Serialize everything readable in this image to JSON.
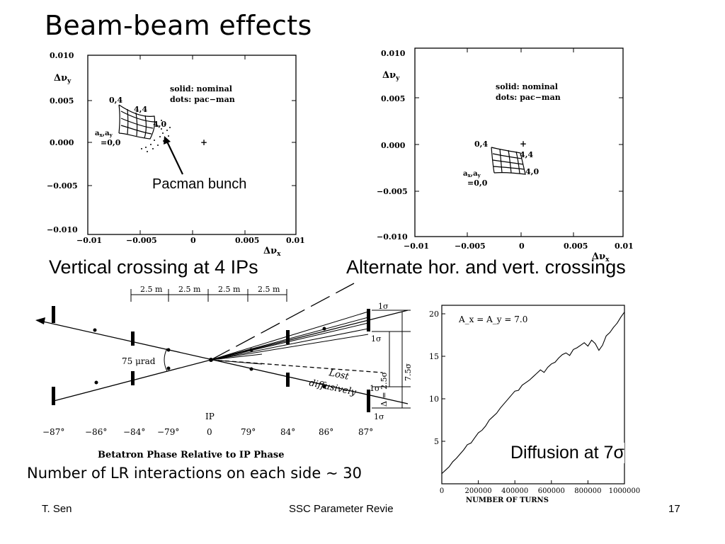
{
  "slide": {
    "title": "Beam-beam effects",
    "caption_left": "Vertical crossing at 4 IPs",
    "caption_right": "Alternate hor. and vert. crossings",
    "pacman_label": "Pacman bunch",
    "lr_text": "Number of LR interactions on each side ~ 30",
    "diffusion_label": "Diffusion at 7σ",
    "footer_left": "T. Sen",
    "footer_center": "SSC Parameter Revie",
    "page_number": "17"
  },
  "tune_plot_left": {
    "y_label": "Δν",
    "y_sub": "y",
    "x_label": "Δν",
    "x_sub": "x",
    "y_ticks": [
      "0.010",
      "0.005",
      "0.000",
      "−0.005",
      "−0.010"
    ],
    "x_ticks": [
      "−0.01",
      "−0.005",
      "0",
      "0.005",
      "0.01"
    ],
    "legend_solid": "solid: nominal",
    "legend_dots": "dots: pac−man",
    "pt_04": "0,4",
    "pt_44": "4,4",
    "pt_40": "4,0",
    "pt_axay": "a",
    "pt_axay_sub": "x",
    "pt_axay2": ",a",
    "pt_axay_sub2": "y",
    "pt_00": "=0,0"
  },
  "tune_plot_right": {
    "y_label": "Δν",
    "y_sub": "y",
    "x_label": "Δν",
    "x_sub": "x",
    "y_ticks": [
      "0.010",
      "0.005",
      "0.000",
      "−0.005",
      "−0.010"
    ],
    "x_ticks": [
      "−0.01",
      "−0.005",
      "0",
      "0.005",
      "0.01"
    ],
    "legend_solid": "solid: nominal",
    "legend_dots": "dots: pac−man",
    "pt_04": "0,4",
    "pt_44": "4,4",
    "pt_40": "4,0",
    "pt_axay": "a",
    "pt_axay_sub": "x",
    "pt_axay2": ",a",
    "pt_axay_sub2": "y",
    "pt_00": "=0,0"
  },
  "crossing_diagram": {
    "spacings": [
      "2.5 m",
      "2.5 m",
      "2.5 m",
      "2.5 m"
    ],
    "angle_label": "75 μrad",
    "lost_label_1": "Lost",
    "lost_label_2": "diffusively",
    "sigma_1": "1σ",
    "sigma_2": "1σ",
    "sigma_3": "1σ",
    "sigma_4": "1σ",
    "delta_label": "Δ = 2.5σ",
    "total_label": "7.5σ",
    "ip_label": "IP",
    "phases": [
      "−87°",
      "−86°",
      "−84°",
      "−79°",
      "0",
      "79°",
      "84°",
      "86°",
      "87°"
    ],
    "axis_title": "Betatron Phase Relative to IP Phase"
  },
  "chart_data": {
    "type": "line",
    "title": "",
    "annotation": "A_x = A_y = 7.0",
    "xlabel": "NUMBER OF TURNS",
    "ylabel": "",
    "xlim": [
      0,
      1000000
    ],
    "ylim": [
      0,
      21
    ],
    "x_ticks": [
      "0",
      "200000",
      "400000",
      "600000",
      "800000",
      "1000000"
    ],
    "y_ticks": [
      "5",
      "10",
      "15",
      "20"
    ],
    "series": [
      {
        "x": [
          0,
          20000,
          40000,
          60000,
          80000,
          100000,
          120000,
          140000,
          160000,
          180000,
          200000,
          220000,
          240000,
          260000,
          280000,
          300000,
          320000,
          340000,
          360000,
          380000,
          400000,
          420000,
          440000,
          460000,
          480000,
          500000,
          520000,
          540000,
          560000,
          580000,
          600000,
          620000,
          640000,
          660000,
          680000,
          700000,
          720000,
          740000,
          760000,
          780000,
          800000,
          820000,
          840000,
          860000,
          880000,
          900000,
          920000,
          940000,
          960000,
          980000,
          1000000
        ],
        "values": [
          1.2,
          1.6,
          2.0,
          2.6,
          3.0,
          3.5,
          4.0,
          4.6,
          4.8,
          5.4,
          6.0,
          6.3,
          6.8,
          7.5,
          7.9,
          8.3,
          8.9,
          9.4,
          9.9,
          10.4,
          10.9,
          11.0,
          11.6,
          11.9,
          12.2,
          12.6,
          13.0,
          13.4,
          13.1,
          13.7,
          14.1,
          14.3,
          14.8,
          15.2,
          15.4,
          15.1,
          15.8,
          16.0,
          16.3,
          16.6,
          16.2,
          16.9,
          16.5,
          15.7,
          16.3,
          17.4,
          17.8,
          18.4,
          18.9,
          19.6,
          20.2
        ]
      }
    ]
  }
}
